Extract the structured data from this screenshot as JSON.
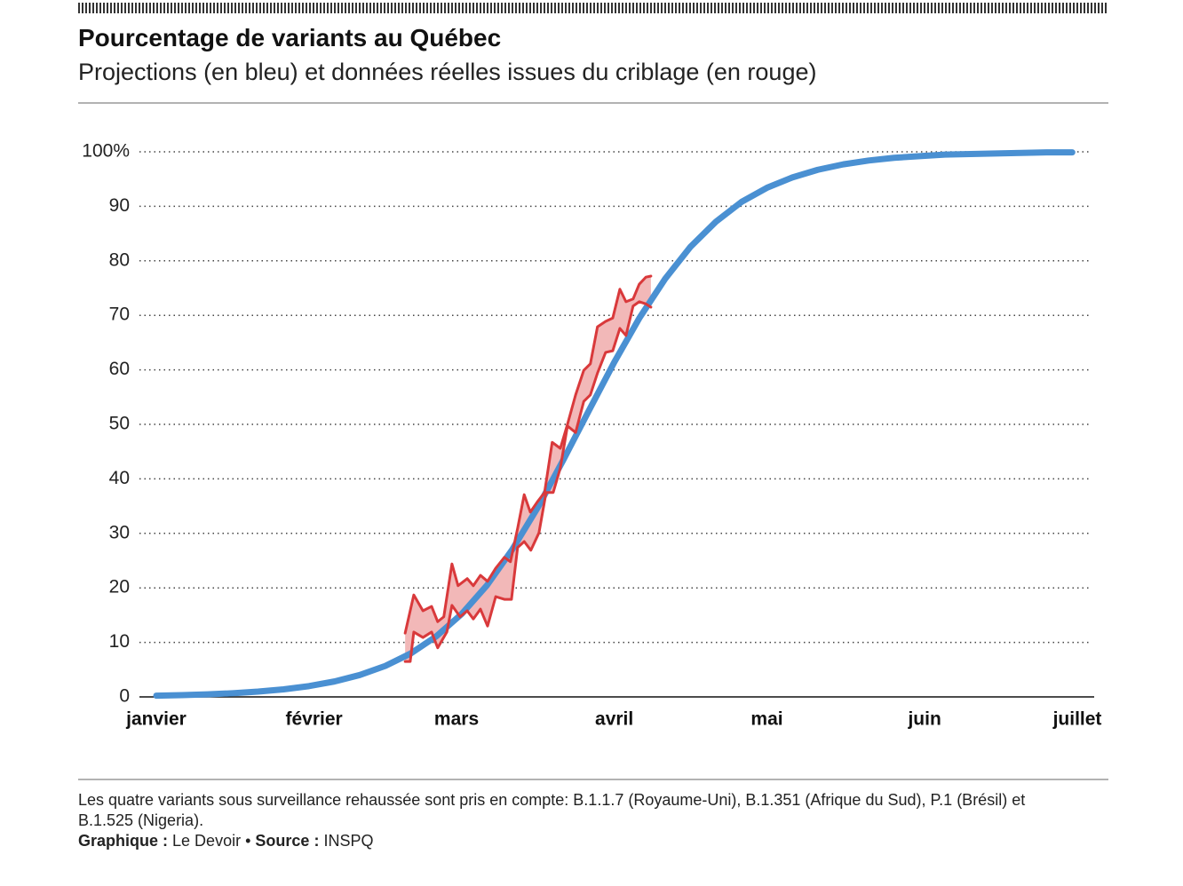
{
  "chart_data": {
    "type": "line",
    "title": "Pourcentage de variants au Québec",
    "subtitle": "Projections (en bleu) et données réelles issues du criblage (en rouge)",
    "xlim": [
      0,
      181
    ],
    "xticks": [
      {
        "value": 0,
        "label": "janvier"
      },
      {
        "value": 31,
        "label": "février"
      },
      {
        "value": 59,
        "label": "mars"
      },
      {
        "value": 90,
        "label": "avril"
      },
      {
        "value": 120,
        "label": "mai"
      },
      {
        "value": 151,
        "label": "juin"
      },
      {
        "value": 181,
        "label": "juillet"
      }
    ],
    "ylim": [
      0,
      100
    ],
    "yticks": [
      0,
      10,
      20,
      30,
      40,
      50,
      60,
      70,
      80,
      90,
      {
        "value": 100,
        "label": "100%"
      }
    ],
    "grid": true,
    "band_fill": "#f2b8b8",
    "series": [
      {
        "color": "#4a90d2",
        "x": [
          0,
          5,
          10,
          15,
          20,
          25,
          30,
          35,
          40,
          45,
          50,
          55,
          60,
          65,
          70,
          75,
          80,
          85,
          90,
          95,
          100,
          105,
          110,
          115,
          120,
          125,
          130,
          135,
          140,
          145,
          150,
          155,
          160,
          165,
          170,
          175,
          180
        ],
        "values": [
          0.23,
          0.33,
          0.47,
          0.67,
          0.97,
          1.39,
          1.98,
          2.83,
          4.02,
          5.68,
          7.97,
          11.1,
          15.2,
          20.5,
          27.1,
          34.8,
          43.5,
          52.5,
          61.4,
          69.6,
          76.7,
          82.6,
          87.2,
          90.8,
          93.4,
          95.3,
          96.7,
          97.7,
          98.4,
          98.9,
          99.2,
          99.5,
          99.6,
          99.7,
          99.8,
          99.9,
          99.9
        ]
      },
      {
        "color": "#d9393b",
        "x": [
          48.9,
          50.6,
          52.4,
          54.1,
          55.3,
          56.5,
          58.1,
          59.3,
          61.1,
          62.3,
          63.7,
          65.1,
          66.7,
          68.4,
          69.6,
          71.0,
          72.3,
          73.5,
          74.9,
          76.3,
          77.8,
          79.4,
          80.8,
          82.4,
          84.0,
          85.3,
          86.7,
          88.3,
          89.7,
          91.1,
          92.3,
          93.7,
          94.9,
          96.2,
          97.2
        ],
        "values": [
          11.7,
          18.7,
          15.8,
          16.6,
          13.8,
          14.7,
          24.4,
          20.4,
          21.7,
          20.4,
          22.3,
          21.2,
          23.6,
          25.6,
          24.8,
          30.9,
          37.1,
          33.9,
          35.8,
          37.5,
          46.7,
          45.6,
          50.0,
          55.4,
          59.9,
          61.1,
          67.9,
          68.9,
          69.5,
          74.8,
          72.5,
          73.0,
          75.7,
          77.0,
          77.2
        ]
      },
      {
        "color": "#d9393b",
        "x": [
          48.9,
          49.9,
          50.6,
          52.4,
          54.1,
          55.3,
          57.1,
          58.1,
          59.7,
          61.1,
          62.3,
          63.7,
          65.1,
          66.7,
          68.4,
          69.8,
          71.0,
          72.3,
          73.6,
          75.2,
          76.6,
          78.0,
          79.4,
          80.8,
          82.4,
          84.0,
          85.3,
          86.7,
          88.3,
          89.7,
          91.1,
          92.3,
          93.7,
          94.9,
          96.2,
          97.2
        ],
        "values": [
          6.5,
          6.5,
          11.9,
          10.9,
          11.9,
          9.0,
          11.9,
          16.8,
          14.7,
          15.8,
          14.3,
          16.1,
          13.0,
          18.4,
          17.9,
          17.9,
          27.4,
          28.5,
          26.9,
          30.1,
          37.5,
          37.5,
          42.0,
          49.7,
          48.5,
          54.2,
          55.4,
          59.4,
          63.2,
          63.5,
          67.6,
          66.3,
          71.7,
          72.5,
          72.1,
          71.5
        ]
      }
    ],
    "note": "Les quatre variants sous surveillance rehaussée sont pris en compte: B.1.1.7 (Royaume-Uni), B.1.351 (Afrique du Sud), P.1 (Brésil) et B.1.525 (Nigeria).",
    "credits": {
      "graphic_label": "Graphique :",
      "graphic": "Le Devoir",
      "separator": "•",
      "source_label": "Source :",
      "source": "INSPQ"
    }
  }
}
